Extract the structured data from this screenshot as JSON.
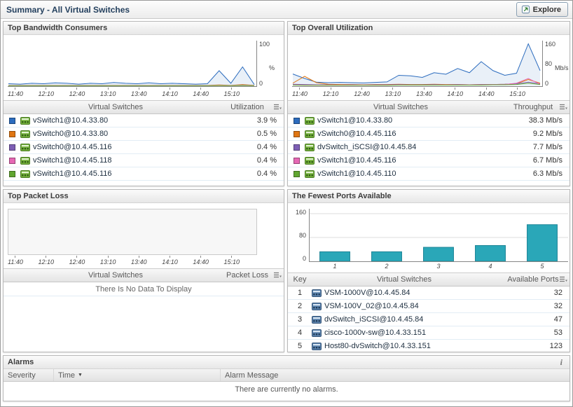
{
  "header": {
    "title": "Summary - All Virtual Switches",
    "explore_label": "Explore"
  },
  "time_labels": [
    "11:40",
    "12:10",
    "12:40",
    "13:10",
    "13:40",
    "14:10",
    "14:40",
    "15:10"
  ],
  "chart_data": [
    {
      "id": "bandwidth",
      "type": "line",
      "title": "Top Bandwidth Consumers",
      "xlabel": "",
      "ylabel": "%",
      "ylim": [
        0,
        100
      ],
      "y_ticks": [
        "100",
        "0"
      ],
      "x": [
        "11:40",
        "12:10",
        "12:40",
        "13:10",
        "13:40",
        "14:10",
        "14:40",
        "15:10"
      ],
      "series": [
        {
          "name": "vSwitch1@10.4.33.80",
          "color": "#2c6cbe",
          "values": [
            5,
            4,
            6,
            5,
            7,
            6,
            4,
            6,
            5,
            8,
            6,
            5,
            7,
            5,
            6,
            5,
            4,
            5,
            36,
            6,
            45,
            3
          ]
        },
        {
          "name": "vSwitch0@10.4.33.80",
          "color": "#e07612",
          "values": [
            1,
            1,
            1,
            1,
            1,
            1,
            1,
            1,
            1,
            1,
            1,
            1,
            1,
            1,
            1,
            1,
            1,
            1,
            2,
            1,
            3,
            1
          ]
        },
        {
          "name": "vSwitch0@10.4.45.116",
          "color": "#7e5fb5",
          "values": [
            0.8,
            0.8,
            0.8,
            0.8,
            0.8,
            0.8,
            0.8,
            0.8,
            0.8,
            0.8,
            0.8,
            0.8,
            0.8,
            0.8,
            0.8,
            0.8,
            0.8,
            0.8,
            1,
            0.8,
            1.5,
            0.8
          ]
        },
        {
          "name": "vSwitch1@10.4.45.118",
          "color": "#e668b4",
          "values": [
            0.6,
            0.6,
            0.6,
            0.6,
            0.6,
            0.6,
            0.6,
            0.6,
            0.6,
            0.6,
            0.6,
            0.6,
            0.6,
            0.6,
            0.6,
            0.6,
            0.6,
            0.6,
            0.8,
            0.6,
            1,
            0.6
          ]
        },
        {
          "name": "vSwitch1@10.4.45.116",
          "color": "#61a630",
          "values": [
            0.5,
            0.5,
            0.5,
            0.5,
            0.5,
            0.5,
            0.5,
            0.5,
            0.5,
            0.5,
            0.5,
            0.5,
            0.5,
            0.5,
            0.5,
            0.5,
            0.5,
            0.5,
            0.7,
            0.5,
            0.9,
            0.5
          ]
        }
      ],
      "legend_position": "table-below",
      "grid": false
    },
    {
      "id": "utilization",
      "type": "line",
      "title": "Top Overall Utilization",
      "xlabel": "",
      "ylabel": "Mb/s",
      "ylim": [
        0,
        160
      ],
      "y_ticks": [
        "160",
        "80",
        "0"
      ],
      "x": [
        "11:40",
        "12:10",
        "12:40",
        "13:10",
        "13:40",
        "14:10",
        "14:40",
        "15:10"
      ],
      "series": [
        {
          "name": "vSwitch1@10.4.33.80",
          "color": "#2c6cbe",
          "values": [
            45,
            28,
            14,
            12,
            13,
            12,
            11,
            13,
            15,
            40,
            38,
            32,
            50,
            44,
            66,
            50,
            92,
            58,
            40,
            48,
            160,
            58
          ]
        },
        {
          "name": "vSwitch0@10.4.45.116",
          "color": "#e07612",
          "values": [
            10,
            36,
            12,
            6,
            5,
            5,
            4,
            5,
            5,
            6,
            5,
            5,
            6,
            5,
            5,
            4,
            5,
            5,
            6,
            8,
            24,
            10
          ]
        },
        {
          "name": "dvSwitch_iSCSI@10.4.45.84",
          "color": "#7e5fb5",
          "values": [
            6,
            5,
            4,
            4,
            3,
            4,
            3,
            4,
            4,
            5,
            4,
            4,
            5,
            4,
            5,
            4,
            5,
            5,
            6,
            8,
            14,
            8
          ]
        },
        {
          "name": "vSwitch1@10.4.45.116",
          "color": "#e668b4",
          "values": [
            4,
            3,
            3,
            3,
            3,
            3,
            3,
            3,
            3,
            4,
            3,
            3,
            4,
            4,
            4,
            4,
            4,
            5,
            5,
            10,
            28,
            6
          ]
        },
        {
          "name": "vSwitch1@10.4.45.110",
          "color": "#61a630",
          "values": [
            3,
            2,
            2,
            2,
            2,
            2,
            2,
            2,
            2,
            3,
            3,
            3,
            3,
            3,
            3,
            3,
            3,
            4,
            4,
            5,
            10,
            5
          ]
        }
      ],
      "legend_position": "table-below",
      "grid": false
    },
    {
      "id": "packetloss",
      "type": "line",
      "title": "Top Packet Loss",
      "xlabel": "",
      "ylabel": "",
      "ylim": [
        0,
        100
      ],
      "x": [
        "11:40",
        "12:10",
        "12:40",
        "13:10",
        "13:40",
        "14:10",
        "14:40",
        "15:10"
      ],
      "series": [],
      "empty": true,
      "grid": false
    },
    {
      "id": "ports",
      "type": "bar",
      "title": "The Fewest Ports Available",
      "xlabel": "",
      "ylabel": "",
      "ylim": [
        0,
        160
      ],
      "y_ticks": [
        "160",
        "80",
        "0"
      ],
      "categories": [
        "1",
        "2",
        "3",
        "4",
        "5"
      ],
      "values": [
        32,
        32,
        47,
        53,
        123
      ],
      "bar_color": "#2aa7b8",
      "bar_stroke": "#1b8496",
      "grid": true
    }
  ],
  "panels": {
    "bandwidth": {
      "title": "Top Bandwidth Consumers",
      "col_switch": "Virtual Switches",
      "col_value": "Utilization",
      "rows": [
        {
          "color": "#2c6cbe",
          "name": "vSwitch1@10.4.33.80",
          "value": "3.9 %"
        },
        {
          "color": "#e07612",
          "name": "vSwitch0@10.4.33.80",
          "value": "0.5 %"
        },
        {
          "color": "#7e5fb5",
          "name": "vSwitch0@10.4.45.116",
          "value": "0.4 %"
        },
        {
          "color": "#e668b4",
          "name": "vSwitch1@10.4.45.118",
          "value": "0.4 %"
        },
        {
          "color": "#61a630",
          "name": "vSwitch1@10.4.45.116",
          "value": "0.4 %"
        }
      ]
    },
    "utilization": {
      "title": "Top Overall Utilization",
      "col_switch": "Virtual Switches",
      "col_value": "Throughput",
      "rows": [
        {
          "color": "#2c6cbe",
          "name": "vSwitch1@10.4.33.80",
          "value": "38.3 Mb/s"
        },
        {
          "color": "#e07612",
          "name": "vSwitch0@10.4.45.116",
          "value": "9.2 Mb/s"
        },
        {
          "color": "#7e5fb5",
          "name": "dvSwitch_iSCSI@10.4.45.84",
          "value": "7.7 Mb/s"
        },
        {
          "color": "#e668b4",
          "name": "vSwitch1@10.4.45.116",
          "value": "6.7 Mb/s"
        },
        {
          "color": "#61a630",
          "name": "vSwitch1@10.4.45.110",
          "value": "6.3 Mb/s"
        }
      ]
    },
    "packetloss": {
      "title": "Top Packet Loss",
      "col_switch": "Virtual Switches",
      "col_value": "Packet Loss",
      "empty_message": "There Is No Data To Display"
    },
    "ports": {
      "title": "The Fewest Ports Available",
      "col_key": "Key",
      "col_switch": "Virtual Switches",
      "col_value": "Available Ports",
      "rows": [
        {
          "key": "1",
          "name": "VSM-1000V@10.4.45.84",
          "value": "32"
        },
        {
          "key": "2",
          "name": "VSM-100V_02@10.4.45.84",
          "value": "32"
        },
        {
          "key": "3",
          "name": "dvSwitch_iSCSI@10.4.45.84",
          "value": "47"
        },
        {
          "key": "4",
          "name": "cisco-1000v-sw@10.4.33.151",
          "value": "53"
        },
        {
          "key": "5",
          "name": "Host80-dvSwitch@10.4.33.151",
          "value": "123"
        }
      ]
    }
  },
  "alarms": {
    "title": "Alarms",
    "columns": [
      "Severity",
      "Time",
      "Alarm Message"
    ],
    "empty_message": "There are currently no alarms."
  }
}
